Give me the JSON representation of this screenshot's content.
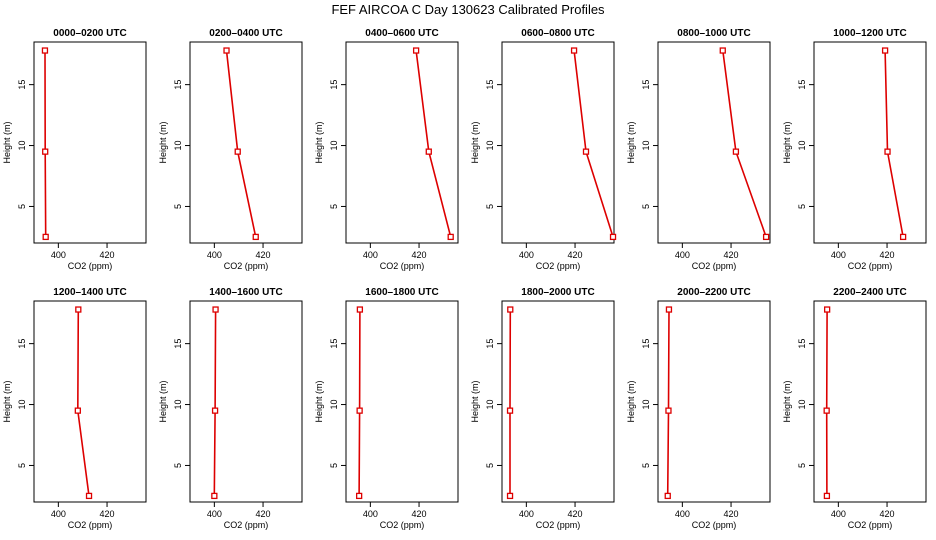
{
  "title": "FEF AIRCOA C  Day 130623  Calibrated Profiles",
  "colors": {
    "series": "#dd0000",
    "axis": "#000000",
    "background": "#ffffff"
  },
  "chart_data": [
    {
      "type": "line",
      "title": "0000–0200 UTC",
      "xlabel": "CO2 (ppm)",
      "ylabel": "Height (m)",
      "xlim": [
        390,
        436
      ],
      "ylim": [
        2,
        18.5
      ],
      "x_ticks": [
        400,
        420
      ],
      "y_ticks": [
        5,
        10,
        15
      ],
      "points": [
        {
          "x": 394.8,
          "y": 2.5
        },
        {
          "x": 394.6,
          "y": 9.5
        },
        {
          "x": 394.5,
          "y": 17.8
        }
      ]
    },
    {
      "type": "line",
      "title": "0200–0400 UTC",
      "xlabel": "CO2 (ppm)",
      "ylabel": "Height (m)",
      "xlim": [
        390,
        436
      ],
      "ylim": [
        2,
        18.5
      ],
      "x_ticks": [
        400,
        420
      ],
      "y_ticks": [
        5,
        10,
        15
      ],
      "points": [
        {
          "x": 417.0,
          "y": 2.5
        },
        {
          "x": 409.6,
          "y": 9.5
        },
        {
          "x": 405.0,
          "y": 17.8
        }
      ]
    },
    {
      "type": "line",
      "title": "0400–0600 UTC",
      "xlabel": "CO2 (ppm)",
      "ylabel": "Height (m)",
      "xlim": [
        390,
        436
      ],
      "ylim": [
        2,
        18.5
      ],
      "x_ticks": [
        400,
        420
      ],
      "y_ticks": [
        5,
        10,
        15
      ],
      "points": [
        {
          "x": 433.0,
          "y": 2.5
        },
        {
          "x": 424.0,
          "y": 9.5
        },
        {
          "x": 418.8,
          "y": 17.8
        }
      ]
    },
    {
      "type": "line",
      "title": "0600–0800 UTC",
      "xlabel": "CO2 (ppm)",
      "ylabel": "Height (m)",
      "xlim": [
        390,
        436
      ],
      "ylim": [
        2,
        18.5
      ],
      "x_ticks": [
        400,
        420
      ],
      "y_ticks": [
        5,
        10,
        15
      ],
      "points": [
        {
          "x": 435.6,
          "y": 2.5
        },
        {
          "x": 424.5,
          "y": 9.5
        },
        {
          "x": 419.6,
          "y": 17.8
        }
      ]
    },
    {
      "type": "line",
      "title": "0800–1000 UTC",
      "xlabel": "CO2 (ppm)",
      "ylabel": "Height (m)",
      "xlim": [
        390,
        436
      ],
      "ylim": [
        2,
        18.5
      ],
      "x_ticks": [
        400,
        420
      ],
      "y_ticks": [
        5,
        10,
        15
      ],
      "points": [
        {
          "x": 434.4,
          "y": 2.5
        },
        {
          "x": 422.0,
          "y": 9.5
        },
        {
          "x": 416.6,
          "y": 17.8
        }
      ]
    },
    {
      "type": "line",
      "title": "1000–1200 UTC",
      "xlabel": "CO2 (ppm)",
      "ylabel": "Height (m)",
      "xlim": [
        390,
        436
      ],
      "ylim": [
        2,
        18.5
      ],
      "x_ticks": [
        400,
        420
      ],
      "y_ticks": [
        5,
        10,
        15
      ],
      "points": [
        {
          "x": 426.6,
          "y": 2.5
        },
        {
          "x": 420.2,
          "y": 9.5
        },
        {
          "x": 419.2,
          "y": 17.8
        }
      ]
    },
    {
      "type": "line",
      "title": "1200–1400 UTC",
      "xlabel": "CO2 (ppm)",
      "ylabel": "Height (m)",
      "xlim": [
        390,
        436
      ],
      "ylim": [
        2,
        18.5
      ],
      "x_ticks": [
        400,
        420
      ],
      "y_ticks": [
        5,
        10,
        15
      ],
      "points": [
        {
          "x": 412.6,
          "y": 2.5
        },
        {
          "x": 408.0,
          "y": 9.5
        },
        {
          "x": 408.2,
          "y": 17.8
        }
      ]
    },
    {
      "type": "line",
      "title": "1400–1600 UTC",
      "xlabel": "CO2 (ppm)",
      "ylabel": "Height (m)",
      "xlim": [
        390,
        436
      ],
      "ylim": [
        2,
        18.5
      ],
      "x_ticks": [
        400,
        420
      ],
      "y_ticks": [
        5,
        10,
        15
      ],
      "points": [
        {
          "x": 400.0,
          "y": 2.5
        },
        {
          "x": 400.3,
          "y": 9.5
        },
        {
          "x": 400.5,
          "y": 17.8
        }
      ]
    },
    {
      "type": "line",
      "title": "1600–1800 UTC",
      "xlabel": "CO2 (ppm)",
      "ylabel": "Height (m)",
      "xlim": [
        390,
        436
      ],
      "ylim": [
        2,
        18.5
      ],
      "x_ticks": [
        400,
        420
      ],
      "y_ticks": [
        5,
        10,
        15
      ],
      "points": [
        {
          "x": 395.4,
          "y": 2.5
        },
        {
          "x": 395.6,
          "y": 9.5
        },
        {
          "x": 395.7,
          "y": 17.8
        }
      ]
    },
    {
      "type": "line",
      "title": "1800–2000 UTC",
      "xlabel": "CO2 (ppm)",
      "ylabel": "Height (m)",
      "xlim": [
        390,
        436
      ],
      "ylim": [
        2,
        18.5
      ],
      "x_ticks": [
        400,
        420
      ],
      "y_ticks": [
        5,
        10,
        15
      ],
      "points": [
        {
          "x": 393.3,
          "y": 2.5
        },
        {
          "x": 393.3,
          "y": 9.5
        },
        {
          "x": 393.4,
          "y": 17.8
        }
      ]
    },
    {
      "type": "line",
      "title": "2000–2200 UTC",
      "xlabel": "CO2 (ppm)",
      "ylabel": "Height (m)",
      "xlim": [
        390,
        436
      ],
      "ylim": [
        2,
        18.5
      ],
      "x_ticks": [
        400,
        420
      ],
      "y_ticks": [
        5,
        10,
        15
      ],
      "points": [
        {
          "x": 394.0,
          "y": 2.5
        },
        {
          "x": 394.3,
          "y": 9.5
        },
        {
          "x": 394.5,
          "y": 17.8
        }
      ]
    },
    {
      "type": "line",
      "title": "2200–2400 UTC",
      "xlabel": "CO2 (ppm)",
      "ylabel": "Height (m)",
      "xlim": [
        390,
        436
      ],
      "ylim": [
        2,
        18.5
      ],
      "x_ticks": [
        400,
        420
      ],
      "y_ticks": [
        5,
        10,
        15
      ],
      "points": [
        {
          "x": 395.3,
          "y": 2.5
        },
        {
          "x": 395.2,
          "y": 9.5
        },
        {
          "x": 395.4,
          "y": 17.8
        }
      ]
    }
  ]
}
